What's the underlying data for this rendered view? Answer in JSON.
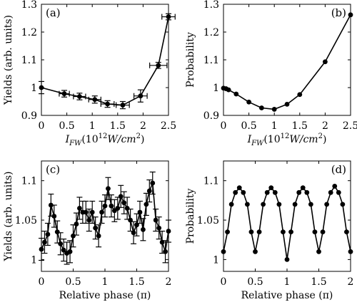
{
  "chart_data": [
    {
      "type": "line",
      "panel_label": "(a)",
      "xlabel": "I_FW(10^12 W/cm^2)",
      "xlabel_parts": [
        "I",
        "FW",
        "(10",
        "12",
        "W/cm",
        "2",
        ")"
      ],
      "ylabel": "Yields (arb. units)",
      "xlim": [
        0,
        2.5
      ],
      "ylim": [
        0.9,
        1.3
      ],
      "xticks": [
        0,
        0.5,
        1,
        1.5,
        2,
        2.5
      ],
      "xtick_labels": [
        "0",
        "0.5",
        "1",
        "1.5",
        "2",
        "2.5"
      ],
      "yticks": [
        0.9,
        1,
        1.1,
        1.2,
        1.3
      ],
      "ytick_labels": [
        "0.9",
        "1",
        "1.1",
        "1.2",
        "1.3"
      ],
      "error_bars": true,
      "series": [
        {
          "x": [
            0,
            0.45,
            0.75,
            1.05,
            1.3,
            1.6,
            1.95,
            2.3,
            2.5
          ],
          "y": [
            1.0,
            0.978,
            0.968,
            0.957,
            0.941,
            0.937,
            0.97,
            1.08,
            1.255
          ],
          "yerr": [
            0.022,
            0.012,
            0.012,
            0.013,
            0.012,
            0.013,
            0.022,
            0.011,
            0.011
          ],
          "xerr": [
            0,
            0.1,
            0.12,
            0.12,
            0.13,
            0.13,
            0.13,
            0.17,
            0.13
          ]
        }
      ]
    },
    {
      "type": "line",
      "panel_label": "(b)",
      "xlabel": "I_FW(10^12 W/cm^2)",
      "xlabel_parts": [
        "I",
        "FW",
        "(10",
        "12",
        "W/cm",
        "2",
        ")"
      ],
      "ylabel": "Probability",
      "xlim": [
        0,
        2.5
      ],
      "ylim": [
        0.9,
        1.3
      ],
      "xticks": [
        0,
        0.5,
        1,
        1.5,
        2,
        2.5
      ],
      "xtick_labels": [
        "0",
        "0.5",
        "1",
        "1.5",
        "2",
        "2.5"
      ],
      "yticks": [
        0.9,
        1,
        1.1,
        1.2,
        1.3
      ],
      "ytick_labels": [
        "0.9",
        "1",
        "1.1",
        "1.2",
        "1.3"
      ],
      "error_bars": false,
      "series": [
        {
          "x": [
            0,
            0.05,
            0.1,
            0.25,
            0.5,
            0.75,
            1.0,
            1.25,
            1.5,
            2.0,
            2.5
          ],
          "y": [
            0.998,
            0.996,
            0.992,
            0.977,
            0.948,
            0.927,
            0.922,
            0.94,
            0.975,
            1.093,
            1.262
          ]
        }
      ]
    },
    {
      "type": "line",
      "panel_label": "(c)",
      "xlabel": "Relative phase (π)",
      "ylabel": "Yields (arb. units)",
      "xlim": [
        0,
        2
      ],
      "ylim": [
        0.985,
        1.125
      ],
      "xticks": [
        0,
        0.5,
        1,
        1.5,
        2
      ],
      "xtick_labels": [
        "0",
        "0.5",
        "1",
        "1.5",
        "2"
      ],
      "yticks": [
        1,
        1.05,
        1.1
      ],
      "ytick_labels": [
        "1",
        "1.05",
        "1.1"
      ],
      "error_bars": true,
      "series": [
        {
          "x": [
            0,
            0.05,
            0.1,
            0.15,
            0.2,
            0.25,
            0.3,
            0.35,
            0.4,
            0.45,
            0.5,
            0.55,
            0.6,
            0.65,
            0.7,
            0.75,
            0.8,
            0.85,
            0.9,
            0.95,
            1.0,
            1.05,
            1.1,
            1.15,
            1.2,
            1.25,
            1.3,
            1.35,
            1.4,
            1.45,
            1.5,
            1.55,
            1.6,
            1.65,
            1.7,
            1.75,
            1.8,
            1.85,
            1.9,
            1.95,
            2.0
          ],
          "y": [
            1.013,
            1.022,
            1.032,
            1.069,
            1.055,
            1.035,
            1.02,
            1.012,
            1.008,
            1.01,
            1.03,
            1.045,
            1.065,
            1.06,
            1.06,
            1.05,
            1.06,
            1.04,
            1.03,
            1.06,
            1.068,
            1.09,
            1.068,
            1.062,
            1.065,
            1.08,
            1.072,
            1.065,
            1.05,
            1.034,
            1.044,
            1.06,
            1.038,
            1.07,
            1.087,
            1.097,
            1.05,
            1.04,
            1.022,
            1.01,
            1.036
          ],
          "yerr": [
            0.014,
            0.014,
            0.014,
            0.014,
            0.014,
            0.014,
            0.014,
            0.014,
            0.014,
            0.014,
            0.014,
            0.014,
            0.014,
            0.014,
            0.014,
            0.014,
            0.014,
            0.014,
            0.014,
            0.014,
            0.014,
            0.014,
            0.014,
            0.014,
            0.014,
            0.014,
            0.014,
            0.014,
            0.014,
            0.014,
            0.014,
            0.014,
            0.014,
            0.014,
            0.014,
            0.014,
            0.014,
            0.014,
            0.014,
            0.014,
            0.014
          ]
        }
      ]
    },
    {
      "type": "line",
      "panel_label": "(d)",
      "xlabel": "Relative phase (π)",
      "ylabel": "Probability",
      "xlim": [
        0,
        2
      ],
      "ylim": [
        0.985,
        1.125
      ],
      "xticks": [
        0,
        0.5,
        1,
        1.5,
        2
      ],
      "xtick_labels": [
        "0",
        "0.5",
        "1",
        "1.5",
        "2"
      ],
      "yticks": [
        1,
        1.05,
        1.1
      ],
      "ytick_labels": [
        "1",
        "1.05",
        "1.1"
      ],
      "error_bars": false,
      "series": [
        {
          "x": [
            0,
            0.0625,
            0.125,
            0.1875,
            0.25,
            0.3125,
            0.375,
            0.4375,
            0.5,
            0.5625,
            0.625,
            0.6875,
            0.75,
            0.8125,
            0.875,
            0.9375,
            1.0,
            1.0625,
            1.125,
            1.1875,
            1.25,
            1.3125,
            1.375,
            1.4375,
            1.5,
            1.5625,
            1.625,
            1.6875,
            1.75,
            1.8125,
            1.875,
            1.9375,
            2.0
          ],
          "y": [
            1.01,
            1.035,
            1.07,
            1.085,
            1.091,
            1.085,
            1.07,
            1.035,
            1.01,
            1.035,
            1.07,
            1.085,
            1.091,
            1.085,
            1.07,
            1.035,
            1.0,
            1.035,
            1.07,
            1.085,
            1.091,
            1.085,
            1.07,
            1.035,
            1.01,
            1.035,
            1.07,
            1.085,
            1.093,
            1.085,
            1.07,
            1.035,
            1.01
          ]
        }
      ]
    }
  ]
}
